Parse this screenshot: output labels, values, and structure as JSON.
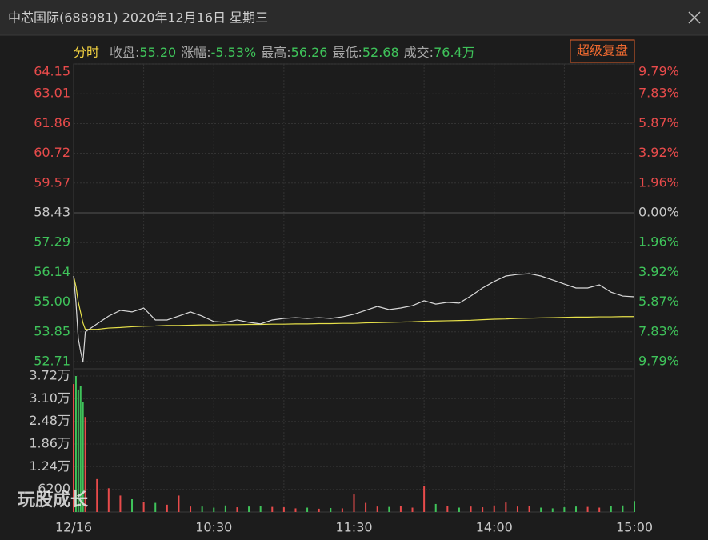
{
  "header": {
    "title": "中芯国际(688981) 2020年12月16日 星期三"
  },
  "info": {
    "mode": "分时",
    "items": [
      {
        "label": "收盘:",
        "value": "55.20"
      },
      {
        "label": "涨幅:",
        "value": "-5.53%"
      },
      {
        "label": "最高:",
        "value": "56.26"
      },
      {
        "label": "最低:",
        "value": "52.68"
      },
      {
        "label": "成交:",
        "value": "76.4万"
      }
    ],
    "button": "超级复盘"
  },
  "watermark": "玩股成长",
  "chart_data": [
    {
      "type": "line",
      "x": [
        0,
        1,
        2,
        3,
        4,
        5,
        10,
        15,
        20,
        25,
        30,
        35,
        40,
        45,
        50,
        55,
        60,
        65,
        70,
        75,
        80,
        85,
        90,
        95,
        100,
        105,
        110,
        115,
        120,
        125,
        130,
        135,
        140,
        145,
        150,
        155,
        160,
        165,
        170,
        175,
        180,
        185,
        190,
        195,
        200,
        205,
        210,
        215,
        220,
        225,
        230,
        235,
        240
      ],
      "series": [
        {
          "color": "#d8d8d8",
          "values": [
            56.0,
            55.0,
            53.6,
            53.1,
            52.68,
            53.85,
            54.16,
            54.46,
            54.68,
            54.62,
            54.77,
            54.31,
            54.31,
            54.46,
            54.62,
            54.46,
            54.25,
            54.22,
            54.31,
            54.22,
            54.16,
            54.31,
            54.37,
            54.4,
            54.37,
            54.4,
            54.37,
            54.43,
            54.53,
            54.68,
            54.83,
            54.71,
            54.77,
            54.86,
            55.05,
            54.92,
            54.99,
            54.96,
            55.23,
            55.54,
            55.79,
            56.0,
            56.06,
            56.09,
            56.0,
            55.85,
            55.69,
            55.54,
            55.54,
            55.66,
            55.38,
            55.23,
            55.2
          ]
        },
        {
          "color": "#e6e04a",
          "values": [
            56.0,
            55.6,
            55.0,
            54.6,
            54.2,
            53.95,
            53.95,
            54.0,
            54.02,
            54.05,
            54.07,
            54.08,
            54.1,
            54.1,
            54.11,
            54.12,
            54.12,
            54.13,
            54.13,
            54.14,
            54.14,
            54.15,
            54.15,
            54.16,
            54.16,
            54.17,
            54.17,
            54.18,
            54.18,
            54.2,
            54.21,
            54.22,
            54.23,
            54.24,
            54.26,
            54.27,
            54.28,
            54.29,
            54.3,
            54.32,
            54.34,
            54.35,
            54.37,
            54.38,
            54.39,
            54.4,
            54.41,
            54.42,
            54.42,
            54.43,
            54.43,
            54.44,
            54.44
          ]
        }
      ],
      "xlim": [
        0,
        240
      ],
      "xticks": [
        {
          "value": 0,
          "label": "12/16"
        },
        {
          "value": 60,
          "label": "10:30"
        },
        {
          "value": 120,
          "label": "11:30"
        },
        {
          "value": 180,
          "label": "14:00"
        },
        {
          "value": 240,
          "label": "15:00"
        }
      ],
      "xgrid": [
        30,
        60,
        90,
        120,
        150,
        180,
        210
      ],
      "ylim": [
        52.71,
        64.15
      ],
      "yticks": [
        64.15,
        63.01,
        61.86,
        60.72,
        59.57,
        58.43,
        57.29,
        56.14,
        {
          "value": 55,
          "label": "55.00"
        },
        53.85,
        52.71
      ],
      "y2lim": [
        -9.79,
        9.79
      ],
      "y2ticks": [
        {
          "value": 9.79,
          "label": "9.79%"
        },
        {
          "value": 7.83,
          "label": "7.83%"
        },
        {
          "value": 5.87,
          "label": "5.87%"
        },
        {
          "value": 3.92,
          "label": "3.92%"
        },
        {
          "value": 1.96,
          "label": "1.96%"
        },
        {
          "value": 0,
          "label": "0.00%"
        },
        {
          "value": -1.96,
          "label": "1.96%"
        },
        {
          "value": -3.92,
          "label": "3.92%"
        },
        {
          "value": -5.87,
          "label": "5.87%"
        },
        {
          "value": -7.83,
          "label": "7.83%"
        },
        {
          "value": -9.79,
          "label": "9.79%"
        }
      ],
      "up_color": "#e84b4b",
      "down_color": "#3fc35a",
      "flat_color": "#c8c8c8"
    },
    {
      "type": "bar",
      "x": [
        0,
        1,
        2,
        3,
        4,
        5,
        10,
        15,
        20,
        25,
        30,
        35,
        40,
        45,
        50,
        55,
        60,
        65,
        70,
        75,
        80,
        85,
        90,
        95,
        100,
        105,
        110,
        115,
        120,
        125,
        130,
        135,
        140,
        145,
        150,
        155,
        160,
        165,
        170,
        175,
        180,
        185,
        190,
        195,
        200,
        205,
        210,
        215,
        220,
        225,
        230,
        235,
        240
      ],
      "values": [
        35000,
        37200,
        33500,
        34500,
        30000,
        26000,
        9000,
        6500,
        4500,
        3500,
        2800,
        2500,
        2000,
        4500,
        1500,
        1500,
        1200,
        1800,
        1300,
        1500,
        1700,
        1400,
        1300,
        1000,
        1200,
        900,
        1100,
        1000,
        4800,
        2500,
        1500,
        1400,
        1600,
        1200,
        7000,
        2200,
        1700,
        1200,
        1500,
        1300,
        1800,
        2600,
        1500,
        1700,
        1200,
        1000,
        1300,
        1500,
        1400,
        1200,
        1600,
        1800,
        3000
      ],
      "xlim": [
        0,
        240
      ],
      "ylim": [
        0,
        37200
      ],
      "yticks": [
        {
          "value": 37200,
          "label": "3.72万"
        },
        {
          "value": 31000,
          "label": "3.10万"
        },
        {
          "value": 24800,
          "label": "2.48万"
        },
        {
          "value": 18600,
          "label": "1.86万"
        },
        {
          "value": 12400,
          "label": "1.24万"
        },
        6200
      ]
    }
  ]
}
